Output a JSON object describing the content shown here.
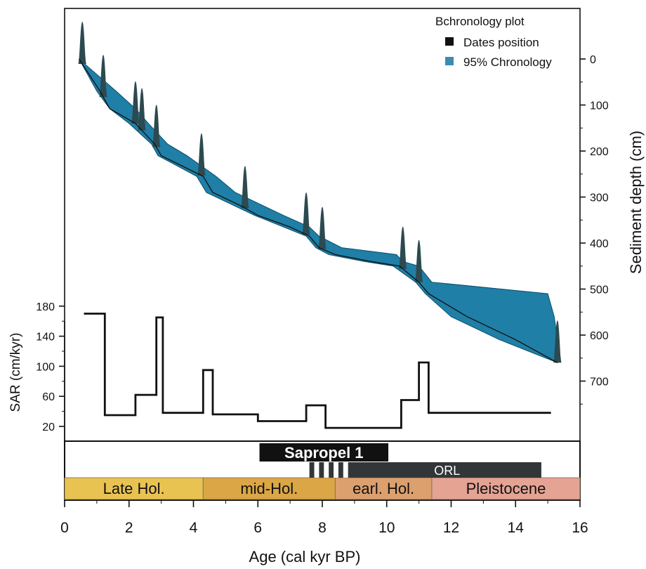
{
  "chart_data": {
    "type": "line",
    "legend": {
      "title": "Bchronology plot",
      "placement": "top-right",
      "entries": [
        {
          "label": "Dates position",
          "color": "#111111"
        },
        {
          "label": "95% Chronology",
          "color": "#3a8db0"
        }
      ]
    },
    "x_axis": {
      "label": "Age (cal kyr BP)",
      "range": [
        0,
        16
      ],
      "ticks": [
        "0",
        "2",
        "4",
        "6",
        "8",
        "10",
        "12",
        "14",
        "16"
      ]
    },
    "depth_axis": {
      "label": "Sediment depth (cm)",
      "range": [
        -100,
        830
      ],
      "ticks": [
        "0",
        "100",
        "200",
        "300",
        "400",
        "500",
        "600",
        "700"
      ],
      "inverted": true
    },
    "sar_axis": {
      "label": "SAR (cm/kyr)",
      "range": [
        0,
        190
      ],
      "ticks": [
        "20",
        "60",
        "100",
        "140",
        "180"
      ]
    },
    "age_depth_median": {
      "x": [
        0.45,
        1.1,
        1.4,
        2.2,
        2.8,
        3.0,
        4.3,
        4.6,
        5.5,
        6.0,
        7.0,
        7.6,
        7.9,
        8.4,
        9.5,
        10.4,
        11.0,
        11.3,
        12.5,
        14.0,
        15.3
      ],
      "depth": [
        0,
        70,
        108,
        140,
        185,
        210,
        255,
        290,
        320,
        340,
        365,
        385,
        410,
        425,
        440,
        450,
        485,
        510,
        560,
        610,
        660
      ]
    },
    "chronology_95": {
      "x_min": [
        0.45,
        1.0,
        1.4,
        2.0,
        2.7,
        2.9,
        4.1,
        4.4,
        5.3,
        5.9,
        6.8,
        7.5,
        7.8,
        8.2,
        9.3,
        10.2,
        10.9,
        11.2,
        12.0,
        13.5,
        15.3
      ],
      "x_max": [
        0.45,
        1.6,
        2.2,
        2.6,
        3.2,
        3.8,
        4.7,
        5.3,
        6.2,
        6.8,
        7.6,
        7.9,
        8.6,
        10.3,
        10.5,
        11.0,
        11.4,
        15.0,
        15.2,
        15.3,
        15.3
      ]
    },
    "date_positions_kyr": [
      0.55,
      1.2,
      2.2,
      2.4,
      2.85,
      4.25,
      5.6,
      7.5,
      8.0,
      10.5,
      11.0,
      15.3
    ],
    "sar": {
      "x": [
        0.6,
        1.25,
        1.25,
        2.2,
        2.2,
        2.85,
        2.85,
        3.05,
        3.05,
        4.3,
        4.3,
        4.6,
        4.6,
        6.0,
        6.0,
        7.5,
        7.5,
        8.1,
        8.1,
        10.45,
        10.45,
        11.0,
        11.0,
        11.3,
        11.3,
        15.1
      ],
      "y": [
        170,
        170,
        35,
        35,
        62,
        62,
        165,
        165,
        38,
        38,
        95,
        95,
        36,
        36,
        27,
        27,
        48,
        48,
        18,
        18,
        55,
        55,
        105,
        105,
        38,
        38
      ]
    },
    "units": [
      {
        "label": "Late Hol.",
        "from": 0,
        "to": 4.3,
        "color": "#e9c352"
      },
      {
        "label": "mid-Hol.",
        "from": 4.3,
        "to": 8.4,
        "color": "#daa646"
      },
      {
        "label": "earl. Hol.",
        "from": 8.4,
        "to": 11.4,
        "color": "#dc9f6e"
      },
      {
        "label": "Pleistocene",
        "from": 11.4,
        "to": 16,
        "color": "#e4a393"
      }
    ],
    "sapropel": {
      "label": "Sapropel 1",
      "from": 6.05,
      "to": 10.05
    },
    "orl": {
      "label": "ORL",
      "from": 7.6,
      "to": 14.8,
      "stripes_to": 8.95
    }
  }
}
